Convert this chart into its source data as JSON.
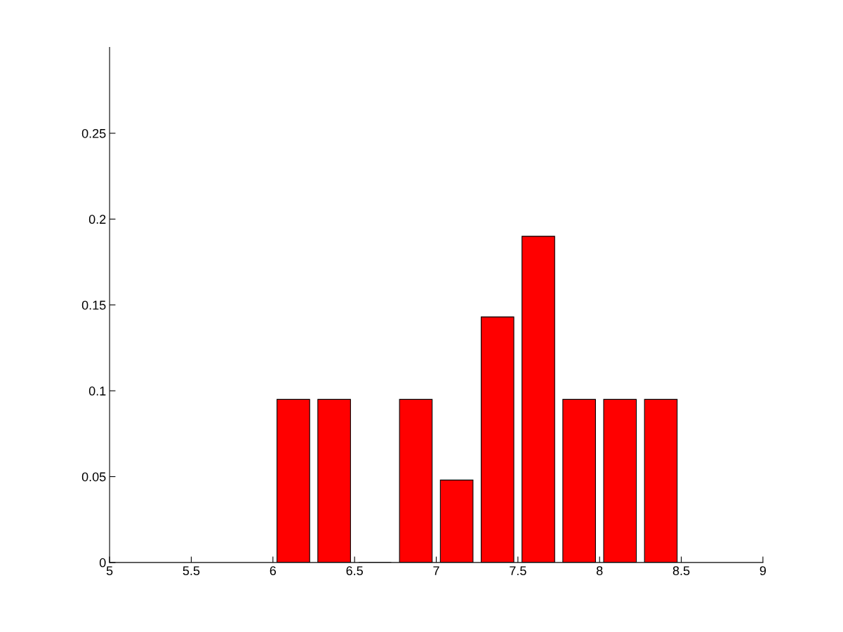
{
  "chart_data": {
    "type": "histogram",
    "bins": [
      6,
      6.25,
      6.5,
      6.75,
      7,
      7.25,
      7.5,
      7.75,
      8,
      8.25,
      8.5
    ],
    "values": [
      0.095,
      0.095,
      0,
      0.095,
      0.048,
      0.143,
      0.19,
      0.095,
      0.095,
      0.095
    ],
    "color": "#ff0000",
    "xlim": [
      5,
      9
    ],
    "xticks": [
      5,
      5.5,
      6,
      6.5,
      7,
      7.5,
      8,
      8.5,
      9
    ],
    "ylim": [
      0,
      0.3
    ],
    "yticks": [
      0,
      0.05,
      0.1,
      0.15,
      0.2,
      0.25
    ],
    "grid": false,
    "legend": false
  }
}
